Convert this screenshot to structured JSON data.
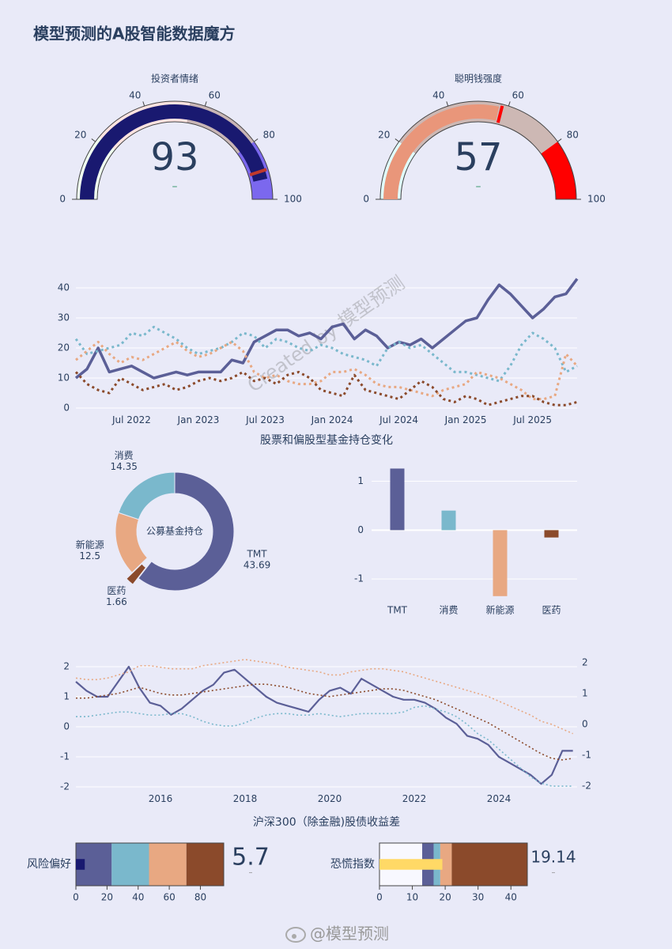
{
  "title": "模型预测的A股智能数据魔方",
  "footer": "@模型预测",
  "chart_data": [
    {
      "type": "gauge",
      "title": "投资者情绪",
      "value": 93,
      "delta": "–",
      "delta_color": "#3d9970",
      "xlim": [
        0,
        100
      ],
      "xticks": [
        0,
        20,
        40,
        60,
        80,
        100
      ],
      "bar_color": "#191970",
      "threshold": 90,
      "threshold_color": "#c0392b",
      "steps": [
        {
          "range": [
            0,
            22
          ],
          "color": "#f0fff0"
        },
        {
          "range": [
            22,
            55
          ],
          "color": "#ffe4e1"
        },
        {
          "range": [
            55,
            80
          ],
          "color": "#c9b6b6"
        },
        {
          "range": [
            80,
            100
          ],
          "color": "#7b68ee"
        }
      ]
    },
    {
      "type": "gauge",
      "title": "聪明钱强度",
      "value": 57,
      "delta": "–",
      "delta_color": "#3d9970",
      "xlim": [
        0,
        100
      ],
      "xticks": [
        0,
        20,
        40,
        60,
        80,
        100
      ],
      "bar_color": "#e9967a",
      "threshold": 58,
      "threshold_color": "#ff0000",
      "steps": [
        {
          "range": [
            0,
            20
          ],
          "color": "#e0ffff"
        },
        {
          "range": [
            20,
            80
          ],
          "color": "#cdb8b4"
        },
        {
          "range": [
            80,
            100
          ],
          "color": "#ff0000"
        }
      ]
    },
    {
      "type": "line",
      "watermark": "Created by 模型预测",
      "xlabel": "股票和偏股型基金持仓变化",
      "x": [
        "2022-02",
        "2022-03",
        "2022-04",
        "2022-05",
        "2022-06",
        "2022-07",
        "2022-08",
        "2022-09",
        "2022-10",
        "2022-11",
        "2022-12",
        "2023-01",
        "2023-02",
        "2023-03",
        "2023-04",
        "2023-05",
        "2023-06",
        "2023-07",
        "2023-08",
        "2023-09",
        "2023-10",
        "2023-11",
        "2023-12",
        "2024-01",
        "2024-02",
        "2024-03",
        "2024-04",
        "2024-05",
        "2024-06",
        "2024-07",
        "2024-08",
        "2024-09",
        "2024-10",
        "2024-11",
        "2024-12",
        "2025-01",
        "2025-02",
        "2025-03",
        "2025-04",
        "2025-05",
        "2025-06",
        "2025-07",
        "2025-08",
        "2025-09",
        "2025-10",
        "2025-11"
      ],
      "xlim": [
        "2022-02",
        "2025-11"
      ],
      "xticks": [
        {
          "value": "2022-07",
          "label": "Jul 2022"
        },
        {
          "value": "2023-01",
          "label": "Jan 2023"
        },
        {
          "value": "2023-07",
          "label": "Jul 2023"
        },
        {
          "value": "2024-01",
          "label": "Jan 2024"
        },
        {
          "value": "2024-07",
          "label": "Jul 2024"
        },
        {
          "value": "2025-01",
          "label": "Jan 2025"
        },
        {
          "value": "2025-07",
          "label": "Jul 2025"
        }
      ],
      "ylim": [
        -1.5,
        45
      ],
      "yticks": [
        0,
        10,
        20,
        30,
        40
      ],
      "grid": true,
      "series": [
        {
          "color": "#5b5f97",
          "dash": "solid",
          "values": [
            10,
            13,
            20,
            12,
            13,
            14,
            12,
            10,
            11,
            12,
            11,
            12,
            12,
            12,
            16,
            15,
            22,
            24,
            26,
            26,
            24,
            25,
            23,
            27,
            28,
            23,
            26,
            24,
            20,
            22,
            21,
            23,
            20,
            23,
            26,
            29,
            30,
            36,
            41,
            38,
            34,
            30,
            33,
            37,
            38,
            43
          ]
        },
        {
          "color": "#7ab8cc",
          "dash": "dot",
          "values": [
            23,
            18,
            19,
            20,
            21,
            25,
            24,
            27,
            25,
            23,
            20,
            18,
            19,
            20,
            22,
            25,
            24,
            20,
            23,
            22,
            20,
            19,
            21,
            20,
            18,
            17,
            16,
            14,
            20,
            22,
            20,
            21,
            18,
            15,
            12,
            12,
            11,
            10,
            9,
            14,
            21,
            25,
            23,
            20,
            12,
            14
          ]
        },
        {
          "color": "#e8a882",
          "dash": "dot",
          "values": [
            16,
            19,
            22,
            18,
            15,
            17,
            16,
            18,
            20,
            22,
            19,
            17,
            18,
            20,
            22,
            19,
            12,
            10,
            11,
            9,
            8,
            8,
            9,
            12,
            12,
            13,
            11,
            8,
            7,
            7,
            6,
            5,
            4,
            6,
            7,
            8,
            12,
            11,
            10,
            8,
            6,
            3,
            3,
            4,
            18,
            14
          ]
        },
        {
          "color": "#8b4a2b",
          "dash": "dot",
          "values": [
            12,
            8,
            6,
            5,
            10,
            8,
            6,
            7,
            8,
            6,
            7,
            9,
            10,
            9,
            10,
            12,
            9,
            10,
            8,
            11,
            12,
            10,
            6,
            5,
            4,
            11,
            6,
            5,
            4,
            3,
            6,
            9,
            7,
            3,
            2,
            4,
            3,
            1,
            2,
            3,
            4,
            4,
            2,
            1,
            1,
            2
          ]
        }
      ]
    },
    {
      "type": "pie",
      "center_label": "公募基金持仓",
      "categories": [
        "TMT",
        "医药",
        "新能源",
        "消费"
      ],
      "values": [
        43.69,
        1.66,
        12.5,
        14.35
      ],
      "colors": [
        "#5b5f97",
        "#8b4a2b",
        "#e8a882",
        "#7ab8cc"
      ],
      "pull": [
        0,
        0.14,
        0,
        0
      ],
      "hole": 0.64
    },
    {
      "type": "bar",
      "categories": [
        "TMT",
        "消费",
        "新能源",
        "医药"
      ],
      "values": [
        1.26,
        0.4,
        -1.35,
        -0.15
      ],
      "colors": [
        "#5b5f97",
        "#7ab8cc",
        "#e8a882",
        "#8b4a2b"
      ],
      "ylim": [
        -1.45,
        1.3
      ],
      "yticks": [
        -1,
        0,
        1
      ],
      "grid": true
    },
    {
      "type": "line",
      "xlabel": "沪深300（除金融)股债收益差",
      "x": [
        2014,
        2014.25,
        2014.5,
        2014.75,
        2015,
        2015.25,
        2015.5,
        2015.75,
        2016,
        2016.25,
        2016.5,
        2016.75,
        2017,
        2017.25,
        2017.5,
        2017.75,
        2018,
        2018.25,
        2018.5,
        2018.75,
        2019,
        2019.25,
        2019.5,
        2019.75,
        2020,
        2020.25,
        2020.5,
        2020.75,
        2021,
        2021.25,
        2021.5,
        2021.75,
        2022,
        2022.25,
        2022.5,
        2022.75,
        2023,
        2023.25,
        2023.5,
        2023.75,
        2024,
        2024.25,
        2024.5,
        2024.75,
        2025,
        2025.25,
        2025.5,
        2025.75
      ],
      "xlim": [
        2014,
        2025.85
      ],
      "xticks": [
        2016,
        2018,
        2020,
        2022,
        2024
      ],
      "ylim": [
        -2.15,
        2.3
      ],
      "yticks": [
        -2,
        -1,
        0,
        1,
        2
      ],
      "y2lim": [
        -2.17,
        2.16
      ],
      "y2ticks": [
        -2,
        -1,
        0,
        1,
        2
      ],
      "grid": true,
      "series": [
        {
          "color": "#5b5f97",
          "dash": "solid",
          "values": [
            1.5,
            1.2,
            1.0,
            1.0,
            1.5,
            2.0,
            1.3,
            0.8,
            0.7,
            0.4,
            0.6,
            0.9,
            1.2,
            1.4,
            1.8,
            1.9,
            1.6,
            1.3,
            1.0,
            0.8,
            0.7,
            0.6,
            0.5,
            0.9,
            1.2,
            1.3,
            1.1,
            1.6,
            1.4,
            1.2,
            1.0,
            0.9,
            0.9,
            0.8,
            0.6,
            0.3,
            0.1,
            -0.3,
            -0.4,
            -0.6,
            -1.0,
            -1.2,
            -1.4,
            -1.6,
            -1.9,
            -1.6,
            -0.8,
            -0.8
          ]
        },
        {
          "color": "#e8a882",
          "dash": "dot",
          "axis": "y2",
          "values": [
            1.5,
            1.45,
            1.45,
            1.5,
            1.6,
            1.7,
            1.9,
            1.9,
            1.85,
            1.8,
            1.8,
            1.8,
            1.9,
            1.95,
            2.0,
            2.05,
            2.1,
            2.05,
            2.0,
            1.95,
            1.85,
            1.8,
            1.75,
            1.7,
            1.6,
            1.6,
            1.7,
            1.75,
            1.8,
            1.8,
            1.75,
            1.7,
            1.6,
            1.5,
            1.4,
            1.3,
            1.2,
            1.1,
            1.0,
            0.9,
            0.75,
            0.6,
            0.45,
            0.3,
            0.1,
            0.0,
            -0.15,
            -0.3
          ]
        },
        {
          "color": "#8b4a2b",
          "dash": "dot",
          "axis": "y2",
          "values": [
            0.85,
            0.85,
            0.9,
            0.95,
            1.0,
            1.1,
            1.2,
            1.1,
            1.0,
            0.95,
            0.95,
            1.0,
            1.05,
            1.1,
            1.15,
            1.2,
            1.25,
            1.3,
            1.3,
            1.25,
            1.2,
            1.1,
            1.0,
            0.95,
            0.9,
            0.95,
            1.0,
            1.05,
            1.1,
            1.15,
            1.15,
            1.1,
            1.0,
            0.9,
            0.8,
            0.65,
            0.5,
            0.35,
            0.2,
            0.05,
            -0.15,
            -0.35,
            -0.55,
            -0.75,
            -0.95,
            -1.1,
            -1.15,
            -1.1
          ]
        },
        {
          "color": "#7ab8cc",
          "dash": "dot",
          "axis": "y2",
          "values": [
            0.25,
            0.25,
            0.3,
            0.35,
            0.4,
            0.4,
            0.35,
            0.3,
            0.3,
            0.35,
            0.35,
            0.25,
            0.1,
            0.0,
            -0.05,
            -0.05,
            0.05,
            0.2,
            0.3,
            0.35,
            0.35,
            0.3,
            0.3,
            0.35,
            0.3,
            0.25,
            0.3,
            0.35,
            0.35,
            0.35,
            0.35,
            0.4,
            0.55,
            0.6,
            0.5,
            0.4,
            0.25,
            0.0,
            -0.3,
            -0.5,
            -0.8,
            -1.1,
            -1.4,
            -1.7,
            -1.9,
            -2.0,
            -2.0,
            -2.0
          ]
        }
      ]
    },
    {
      "type": "bullet",
      "title": "风险偏好",
      "value": 5.7,
      "delta": "–",
      "delta_color": "#888888",
      "xlim": [
        0,
        95
      ],
      "xticks": [
        0,
        20,
        40,
        60,
        80
      ],
      "bar_color": "#191970",
      "steps": [
        {
          "range": [
            0,
            23
          ],
          "color": "#5b5f97"
        },
        {
          "range": [
            23,
            47
          ],
          "color": "#7ab8cc"
        },
        {
          "range": [
            47,
            71
          ],
          "color": "#e8a882"
        },
        {
          "range": [
            71,
            95
          ],
          "color": "#8b4a2b"
        }
      ]
    },
    {
      "type": "bullet",
      "title": "恐慌指数",
      "value": 19.14,
      "delta": "–",
      "delta_color": "#888888",
      "xlim": [
        0,
        45
      ],
      "xticks": [
        0,
        10,
        20,
        30,
        40
      ],
      "bar_color": "#ffd966",
      "steps": [
        {
          "range": [
            0,
            13
          ],
          "color": "#f8f8ff"
        },
        {
          "range": [
            13,
            16.5
          ],
          "color": "#5b5f97"
        },
        {
          "range": [
            16.5,
            18.5
          ],
          "color": "#7ab8cc"
        },
        {
          "range": [
            18.5,
            22
          ],
          "color": "#e8a882"
        },
        {
          "range": [
            22,
            45
          ],
          "color": "#8b4a2b"
        }
      ]
    }
  ]
}
